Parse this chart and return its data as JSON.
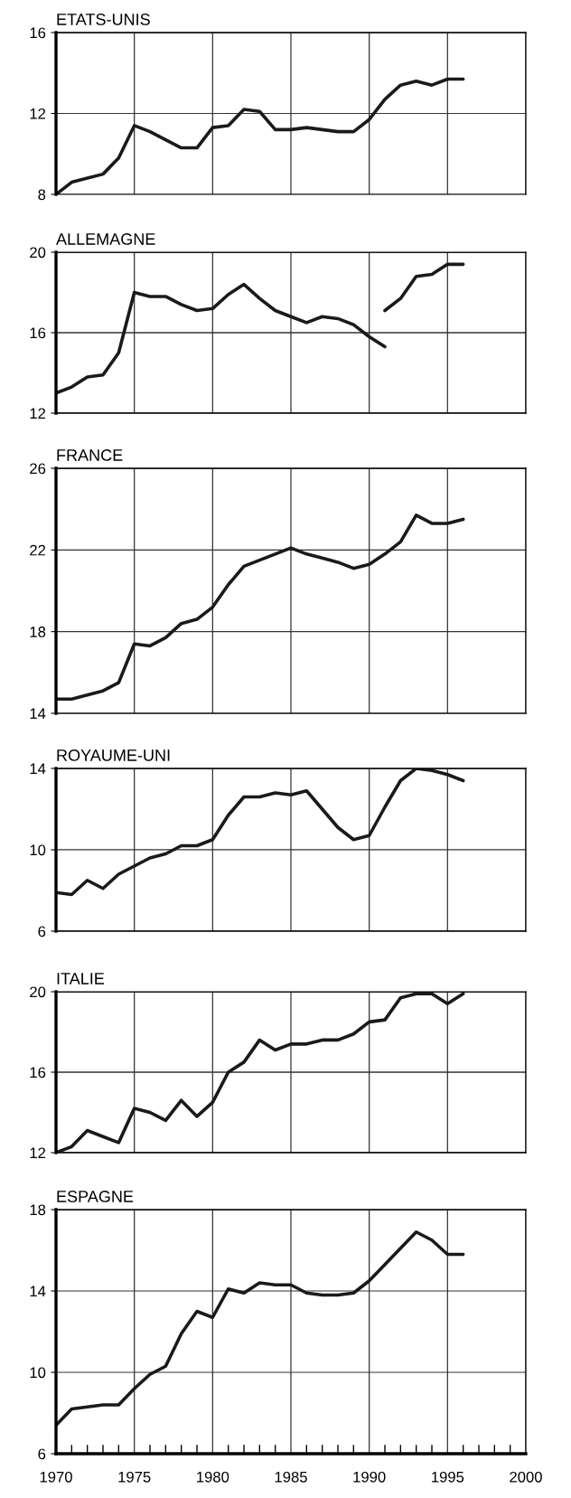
{
  "chart_data": [
    {
      "type": "line",
      "title": "ETATS-UNIS",
      "x": [
        1970,
        1971,
        1972,
        1973,
        1974,
        1975,
        1976,
        1977,
        1978,
        1979,
        1980,
        1981,
        1982,
        1983,
        1984,
        1985,
        1986,
        1987,
        1988,
        1989,
        1990,
        1991,
        1992,
        1993,
        1994,
        1995,
        1996
      ],
      "values": [
        8.0,
        8.6,
        8.8,
        9.0,
        9.8,
        11.4,
        11.1,
        10.7,
        10.3,
        10.3,
        11.3,
        11.4,
        12.2,
        12.1,
        11.2,
        11.2,
        11.3,
        11.2,
        11.1,
        11.1,
        11.7,
        12.7,
        13.4,
        13.6,
        13.4,
        13.7,
        13.7
      ],
      "color": "#1a1a1a",
      "xlim": [
        1970,
        2000
      ],
      "xticks": [
        1970,
        1975,
        1980,
        1985,
        1990,
        1995,
        2000
      ],
      "ylim": [
        8,
        16
      ],
      "yticks": [
        8,
        12,
        16
      ],
      "grid": true,
      "tick_labels": "y"
    },
    {
      "type": "line",
      "title": "ALLEMAGNE",
      "series": [
        {
          "color": "#1a1a1a",
          "x": [
            1970,
            1971,
            1972,
            1973,
            1974,
            1975,
            1976,
            1977,
            1978,
            1979,
            1980,
            1981,
            1982,
            1983,
            1984,
            1985,
            1986,
            1987,
            1988,
            1989,
            1990,
            1991
          ],
          "values": [
            13.0,
            13.3,
            13.8,
            13.9,
            15.0,
            18.0,
            17.8,
            17.8,
            17.4,
            17.1,
            17.2,
            17.9,
            18.4,
            17.7,
            17.1,
            16.8,
            16.5,
            16.8,
            16.7,
            16.4,
            15.8,
            15.3
          ]
        },
        {
          "color": "#1a1a1a",
          "x": [
            1991,
            1992,
            1993,
            1994,
            1995,
            1996
          ],
          "values": [
            17.1,
            17.7,
            18.8,
            18.9,
            19.4,
            19.4
          ]
        }
      ],
      "xlim": [
        1970,
        2000
      ],
      "xticks": [
        1970,
        1975,
        1980,
        1985,
        1990,
        1995,
        2000
      ],
      "ylim": [
        12,
        20
      ],
      "yticks": [
        12,
        16,
        20
      ],
      "grid": true,
      "tick_labels": "y"
    },
    {
      "type": "line",
      "title": "FRANCE",
      "x": [
        1970,
        1971,
        1972,
        1973,
        1974,
        1975,
        1976,
        1977,
        1978,
        1979,
        1980,
        1981,
        1982,
        1983,
        1984,
        1985,
        1986,
        1987,
        1988,
        1989,
        1990,
        1991,
        1992,
        1993,
        1994,
        1995,
        1996
      ],
      "values": [
        14.7,
        14.7,
        14.9,
        15.1,
        15.5,
        17.4,
        17.3,
        17.7,
        18.4,
        18.6,
        19.2,
        20.3,
        21.2,
        21.5,
        21.8,
        22.1,
        21.8,
        21.6,
        21.4,
        21.1,
        21.3,
        21.8,
        22.4,
        23.7,
        23.3,
        23.3,
        23.5
      ],
      "color": "#1a1a1a",
      "xlim": [
        1970,
        2000
      ],
      "xticks": [
        1970,
        1975,
        1980,
        1985,
        1990,
        1995,
        2000
      ],
      "ylim": [
        14,
        26
      ],
      "yticks": [
        14,
        18,
        22,
        26
      ],
      "grid": true,
      "tick_labels": "y"
    },
    {
      "type": "line",
      "title": "ROYAUME-UNI",
      "x": [
        1970,
        1971,
        1972,
        1973,
        1974,
        1975,
        1976,
        1977,
        1978,
        1979,
        1980,
        1981,
        1982,
        1983,
        1984,
        1985,
        1986,
        1987,
        1988,
        1989,
        1990,
        1991,
        1992,
        1993,
        1994,
        1995,
        1996
      ],
      "values": [
        7.9,
        7.8,
        8.5,
        8.1,
        8.8,
        9.2,
        9.6,
        9.8,
        10.2,
        10.2,
        10.5,
        11.7,
        12.6,
        12.6,
        12.8,
        12.7,
        12.9,
        12.0,
        11.1,
        10.5,
        10.7,
        12.1,
        13.4,
        14.0,
        13.9,
        13.7,
        13.4
      ],
      "color": "#1a1a1a",
      "xlim": [
        1970,
        2000
      ],
      "xticks": [
        1970,
        1975,
        1980,
        1985,
        1990,
        1995,
        2000
      ],
      "ylim": [
        6,
        14
      ],
      "yticks": [
        6,
        10,
        14
      ],
      "grid": true,
      "tick_labels": "y"
    },
    {
      "type": "line",
      "title": "ITALIE",
      "x": [
        1970,
        1971,
        1972,
        1973,
        1974,
        1975,
        1976,
        1977,
        1978,
        1979,
        1980,
        1981,
        1982,
        1983,
        1984,
        1985,
        1986,
        1987,
        1988,
        1989,
        1990,
        1991,
        1992,
        1993,
        1994,
        1995,
        1996
      ],
      "values": [
        12.0,
        12.3,
        13.1,
        12.8,
        12.5,
        14.2,
        14.0,
        13.6,
        14.6,
        13.8,
        14.5,
        16.0,
        16.5,
        17.6,
        17.1,
        17.4,
        17.4,
        17.6,
        17.6,
        17.9,
        18.5,
        18.6,
        19.7,
        19.9,
        19.9,
        19.4,
        19.9
      ],
      "color": "#1a1a1a",
      "xlim": [
        1970,
        2000
      ],
      "xticks": [
        1970,
        1975,
        1980,
        1985,
        1990,
        1995,
        2000
      ],
      "ylim": [
        12,
        20
      ],
      "yticks": [
        12,
        16,
        20
      ],
      "grid": true,
      "tick_labels": "y"
    },
    {
      "type": "line",
      "title": "ESPAGNE",
      "x": [
        1970,
        1971,
        1972,
        1973,
        1974,
        1975,
        1976,
        1977,
        1978,
        1979,
        1980,
        1981,
        1982,
        1983,
        1984,
        1985,
        1986,
        1987,
        1988,
        1989,
        1990,
        1991,
        1992,
        1993,
        1994,
        1995,
        1996
      ],
      "values": [
        7.4,
        8.2,
        8.3,
        8.4,
        8.4,
        9.2,
        9.9,
        10.3,
        11.9,
        13.0,
        12.7,
        14.1,
        13.9,
        14.4,
        14.3,
        14.3,
        13.9,
        13.8,
        13.8,
        13.9,
        14.5,
        15.3,
        16.1,
        16.9,
        16.5,
        15.8,
        15.8
      ],
      "color": "#1a1a1a",
      "xlim": [
        1970,
        2000
      ],
      "xticks": [
        1970,
        1975,
        1980,
        1985,
        1990,
        1995,
        2000
      ],
      "ylim": [
        6,
        18
      ],
      "yticks": [
        6,
        10,
        14,
        18
      ],
      "grid": true
    }
  ]
}
